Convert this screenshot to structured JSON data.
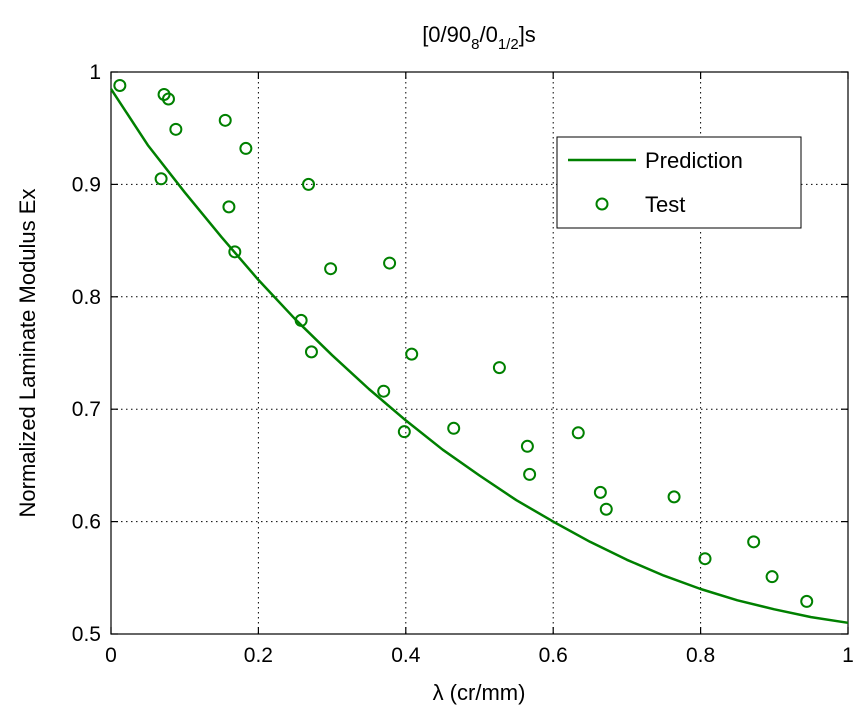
{
  "chart_data": {
    "type": "scatter",
    "title": "[0/90₈/0₁/₂]s",
    "title_parts": {
      "a": "[0/90",
      "b": "8",
      "c": "/0",
      "d": "1/2",
      "e": "]s"
    },
    "xlabel": "λ (cr/mm)",
    "ylabel": "Normalized Laminate Modulus Ex",
    "xlim": [
      0,
      1
    ],
    "ylim": [
      0.5,
      1
    ],
    "xticks": [
      "0",
      "0.2",
      "0.4",
      "0.6",
      "0.8",
      "1"
    ],
    "yticks": [
      "0.5",
      "0.6",
      "0.7",
      "0.8",
      "0.9",
      "1"
    ],
    "grid": true,
    "legend_position": "top-right",
    "colors": {
      "series": "#008000"
    },
    "series": [
      {
        "name": "Prediction",
        "kind": "line",
        "x": [
          0,
          0.05,
          0.1,
          0.15,
          0.2,
          0.25,
          0.3,
          0.35,
          0.4,
          0.45,
          0.5,
          0.55,
          0.6,
          0.65,
          0.7,
          0.75,
          0.8,
          0.85,
          0.9,
          0.95,
          1.0
        ],
        "y": [
          0.985,
          0.935,
          0.893,
          0.853,
          0.815,
          0.78,
          0.748,
          0.718,
          0.69,
          0.664,
          0.641,
          0.619,
          0.6,
          0.582,
          0.566,
          0.552,
          0.54,
          0.53,
          0.522,
          0.515,
          0.51
        ]
      },
      {
        "name": "Test",
        "kind": "marker",
        "x": [
          0.012,
          0.068,
          0.072,
          0.078,
          0.088,
          0.155,
          0.16,
          0.168,
          0.183,
          0.258,
          0.268,
          0.272,
          0.298,
          0.37,
          0.378,
          0.398,
          0.408,
          0.465,
          0.527,
          0.565,
          0.568,
          0.634,
          0.664,
          0.672,
          0.764,
          0.806,
          0.872,
          0.897,
          0.944
        ],
        "y": [
          0.988,
          0.905,
          0.98,
          0.976,
          0.949,
          0.957,
          0.88,
          0.84,
          0.932,
          0.779,
          0.9,
          0.751,
          0.825,
          0.716,
          0.83,
          0.68,
          0.749,
          0.683,
          0.737,
          0.667,
          0.642,
          0.679,
          0.626,
          0.611,
          0.622,
          0.567,
          0.582,
          0.551,
          0.529
        ]
      }
    ]
  }
}
